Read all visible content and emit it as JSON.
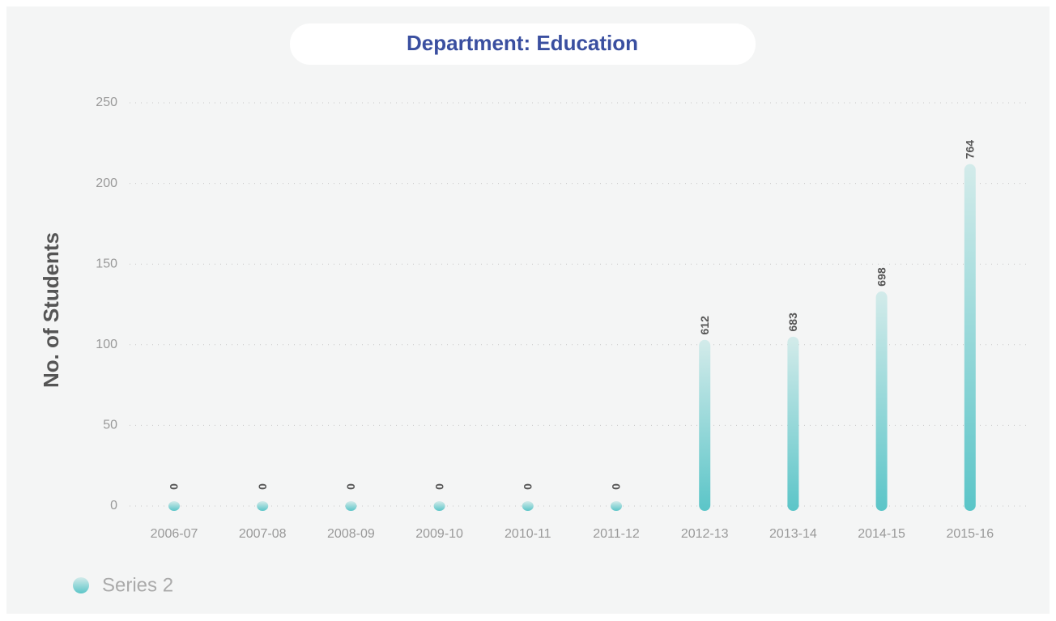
{
  "chart_data": {
    "type": "bar",
    "title": "Department: Education",
    "y_label": "No. of Students",
    "categories": [
      "2006-07",
      "2007-08",
      "2008-09",
      "2009-10",
      "2010-11",
      "2011-12",
      "2012-13",
      "2013-14",
      "2014-15",
      "2015-16"
    ],
    "series": [
      {
        "name": "Series 2",
        "color": "#5bc5c8",
        "values": [
          0,
          0,
          0,
          0,
          0,
          0,
          100,
          102,
          130,
          209
        ]
      }
    ],
    "annotations": [
      "0",
      "0",
      "0",
      "0",
      "0",
      "0",
      "612",
      "683",
      "698",
      "764"
    ],
    "ylim": [
      0,
      250
    ],
    "yticks": [
      0,
      50,
      100,
      150,
      200,
      250
    ],
    "grid": true
  }
}
